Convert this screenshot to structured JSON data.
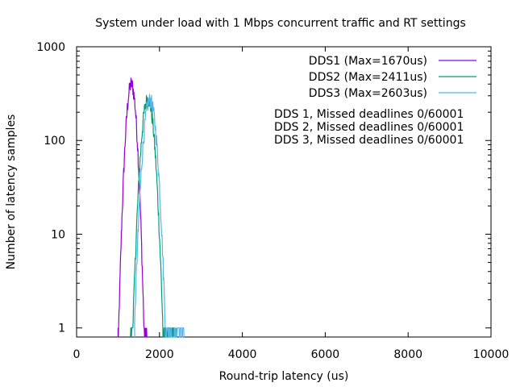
{
  "chart_data": {
    "type": "line",
    "title": "System under load with 1 Mbps concurrent traffic and RT settings",
    "xlabel": "Round-trip latency (us)",
    "ylabel": "Number of latency samples",
    "xlim": [
      0,
      10000
    ],
    "ylim": [
      0.8,
      1000
    ],
    "yscale": "log",
    "grid": false,
    "legend_position": "top-right",
    "x_ticks": [
      0,
      2000,
      4000,
      6000,
      8000,
      10000
    ],
    "y_ticks": [
      {
        "value": 1,
        "label": "1"
      },
      {
        "value": 10,
        "label": "10"
      },
      {
        "value": 100,
        "label": "100"
      },
      {
        "value": 1000,
        "label": "1000"
      }
    ],
    "series": [
      {
        "name": "DDS1 (Max=1670us)",
        "color": "#9400d3",
        "peak_x": 1320,
        "peak_y": 400,
        "sigma": 88,
        "x_start": 1000,
        "x_end": 1700
      },
      {
        "name": "DDS2 (Max=2411us)",
        "color": "#009e73",
        "peak_x": 1720,
        "peak_y": 280,
        "sigma": 108,
        "x_start": 1300,
        "x_end": 2410
      },
      {
        "name": "DDS3 (Max=2603us)",
        "color": "#56b4e9",
        "peak_x": 1770,
        "peak_y": 270,
        "sigma": 112,
        "x_start": 1400,
        "x_end": 2600
      }
    ],
    "annotations": [
      "DDS 1, Missed deadlines 0/60001",
      "DDS 2, Missed deadlines 0/60001",
      "DDS 3, Missed deadlines 0/60001"
    ]
  }
}
